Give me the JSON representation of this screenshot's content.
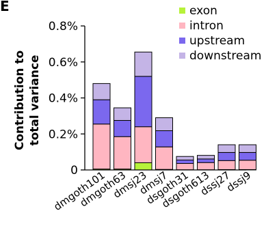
{
  "panel_label": "E",
  "chart_data": {
    "type": "bar",
    "stacked": true,
    "categories": [
      "dmgoth101",
      "dmgoth63",
      "dmsj23",
      "dmsj7",
      "dsgoth31",
      "dsgoth613",
      "dssj27",
      "dssj9"
    ],
    "series": [
      {
        "name": "exon",
        "color": "#b7f23a",
        "values": [
          0.005,
          0.005,
          0.04,
          0.003,
          0.001,
          0.001,
          0.002,
          0.002
        ]
      },
      {
        "name": "intron",
        "color": "#ffb6c1",
        "values": [
          0.25,
          0.18,
          0.2,
          0.125,
          0.035,
          0.04,
          0.05,
          0.052
        ]
      },
      {
        "name": "upstream",
        "color": "#7b68ee",
        "values": [
          0.135,
          0.09,
          0.28,
          0.09,
          0.019,
          0.02,
          0.045,
          0.043
        ]
      },
      {
        "name": "downstream",
        "color": "#c4b4e6",
        "values": [
          0.09,
          0.07,
          0.135,
          0.072,
          0.02,
          0.02,
          0.043,
          0.043
        ]
      }
    ],
    "ylabel": "Contribution to total variance",
    "yticks": [
      "0",
      "0.2%",
      "0.4%",
      "0.6%",
      "0.8%"
    ],
    "ytick_values": [
      0,
      0.2,
      0.4,
      0.6,
      0.8
    ],
    "ylim": [
      0,
      0.8
    ],
    "grid": false,
    "legend_position": "top-right"
  }
}
